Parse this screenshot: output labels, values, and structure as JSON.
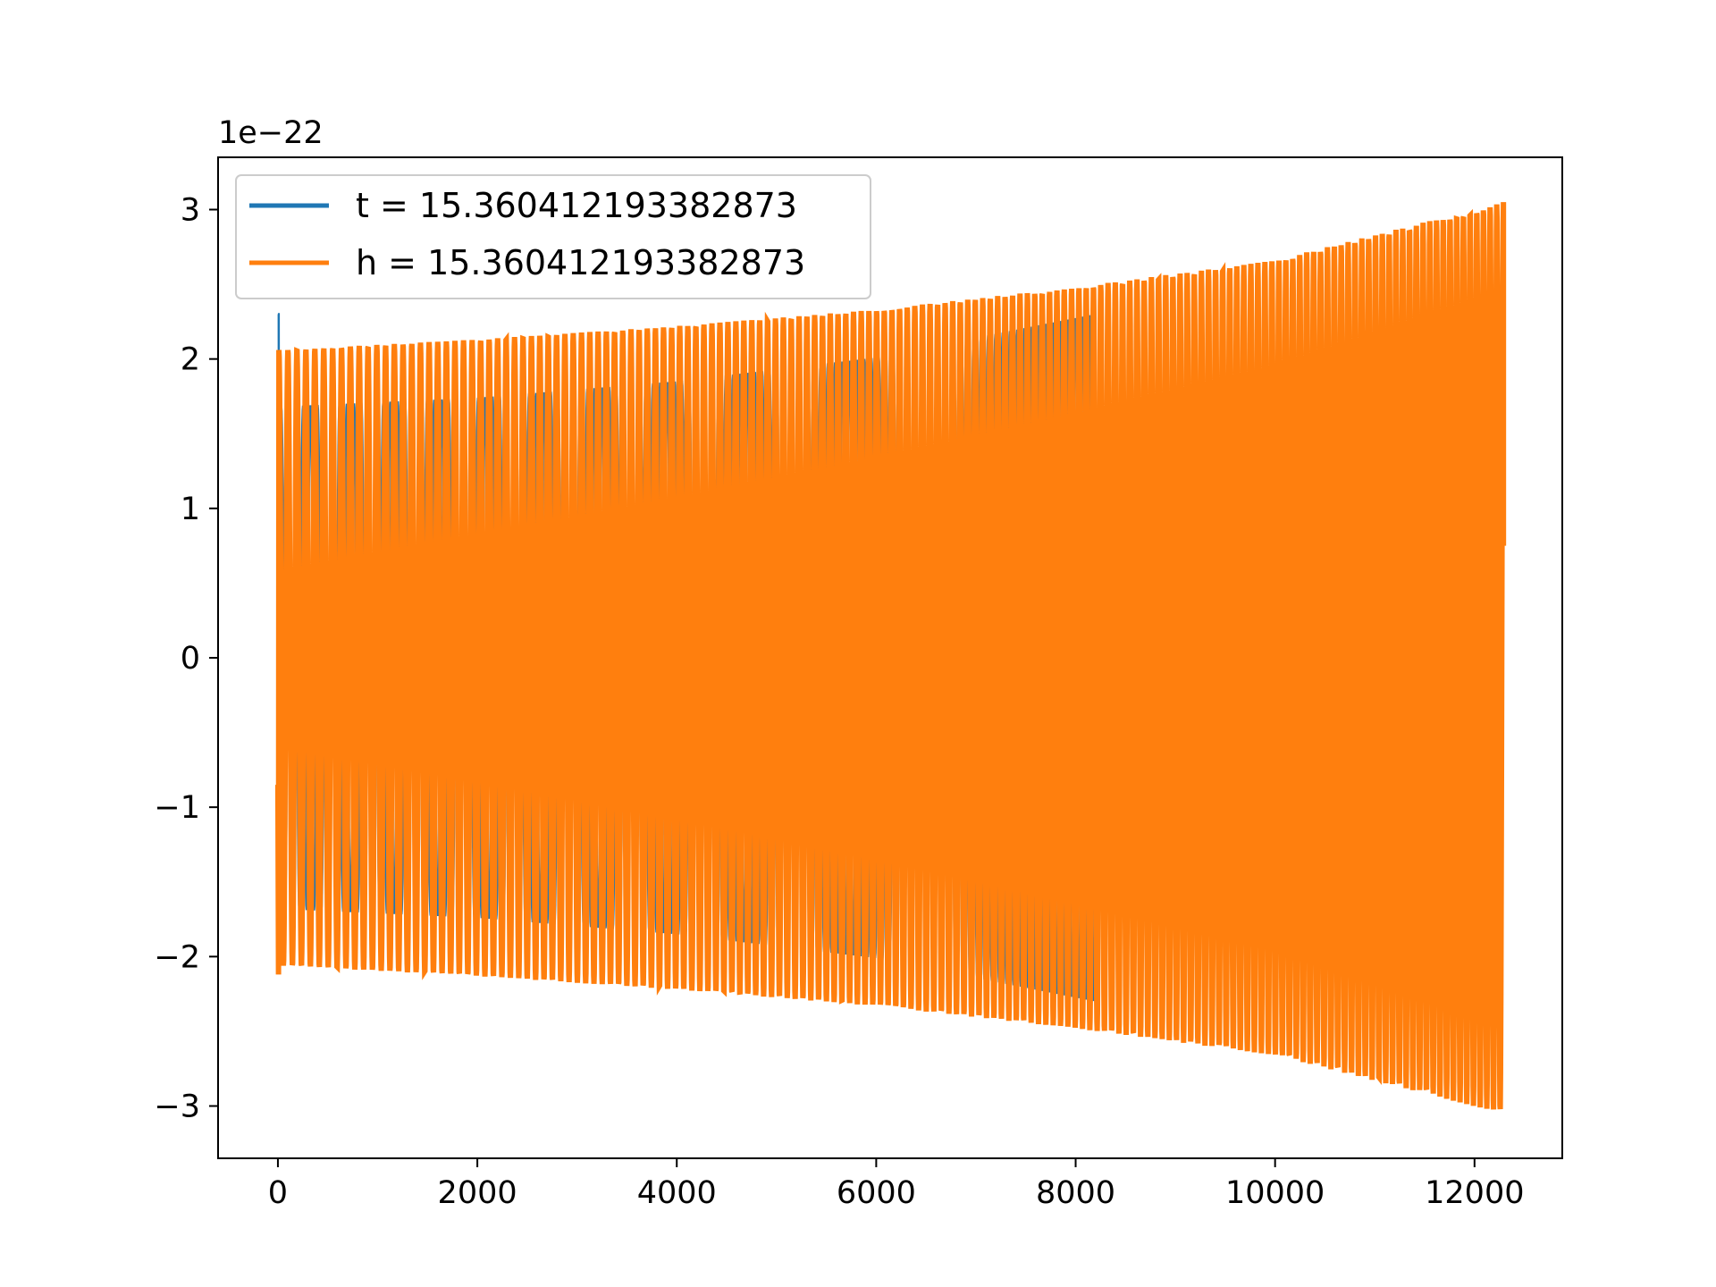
{
  "chart_data": {
    "type": "line",
    "title": "",
    "xlabel": "",
    "ylabel": "",
    "y_offset_label": "1e−22",
    "xlim": [
      -600,
      12880
    ],
    "ylim": [
      -3.35,
      3.35
    ],
    "x_ticks": [
      0,
      2000,
      4000,
      6000,
      8000,
      10000,
      12000
    ],
    "x_tick_labels": [
      "0",
      "2000",
      "4000",
      "6000",
      "8000",
      "10000",
      "12000"
    ],
    "y_ticks": [
      -3,
      -2,
      -1,
      0,
      1,
      2,
      3
    ],
    "y_tick_labels": [
      "−3",
      "−2",
      "−1",
      "0",
      "1",
      "2",
      "3"
    ],
    "grid": false,
    "legend_position": "top-left",
    "series": [
      {
        "name": "t = 15.360412193382873",
        "color": "#1f77b4",
        "x_start": 0,
        "x_end": 8200,
        "n_cycles": 112,
        "envelope_x": [
          0,
          1000,
          2000,
          4000,
          6000,
          8200
        ],
        "envelope_y": [
          1.68,
          1.71,
          1.74,
          1.85,
          2.01,
          2.3
        ],
        "initial_spike": 2.3
      },
      {
        "name": "h = 15.360412193382873",
        "color": "#ff7f0e",
        "x_start": 0,
        "x_end": 12290,
        "n_cycles": 160,
        "envelope_x": [
          0,
          2000,
          4000,
          6000,
          8000,
          10000,
          12290
        ],
        "envelope_y": [
          2.06,
          2.13,
          2.22,
          2.33,
          2.48,
          2.66,
          3.05
        ],
        "initial_value": -0.85,
        "final_value": 0.75
      }
    ]
  }
}
